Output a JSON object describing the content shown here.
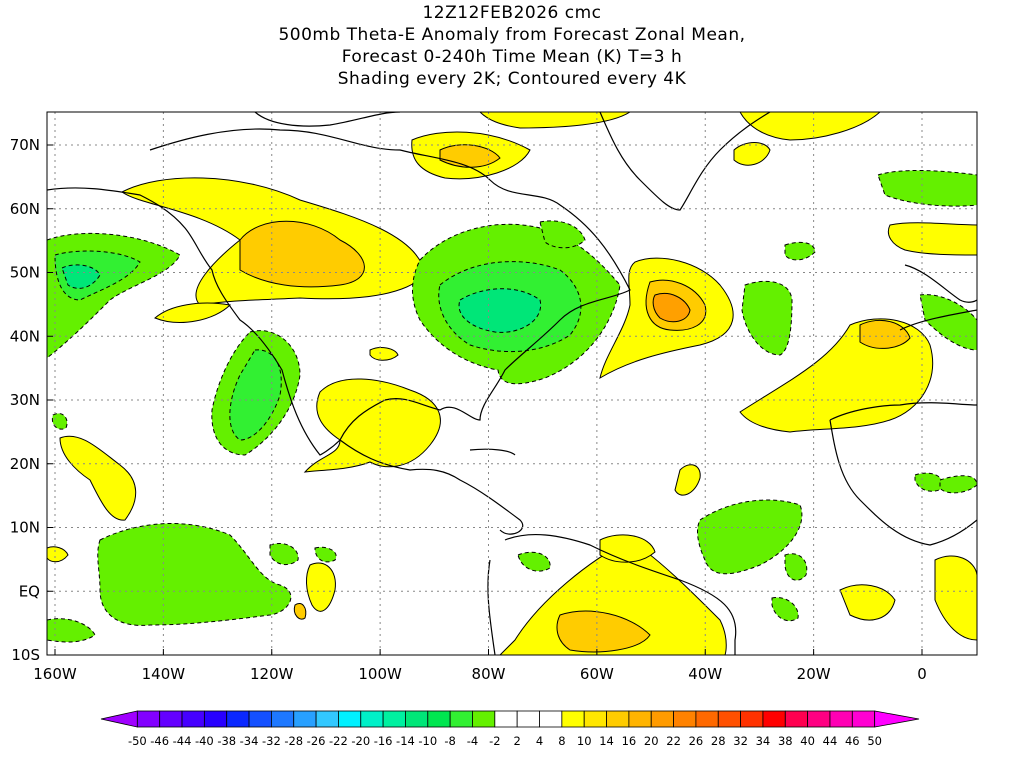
{
  "title": {
    "line1": "12Z12FEB2026 cmc",
    "line2": "500mb Theta-E Anomaly from Forecast Zonal Mean,",
    "line3": "Forecast 0-240h Time Mean (K) T=3 h",
    "line4": "Shading every 2K; Contoured every 4K"
  },
  "axes": {
    "x_labels": [
      "160W",
      "140W",
      "120W",
      "100W",
      "80W",
      "60W",
      "40W",
      "20W",
      "0"
    ],
    "y_labels": [
      "70N",
      "60N",
      "50N",
      "40N",
      "30N",
      "20N",
      "10N",
      "EQ",
      "10S"
    ]
  },
  "colorbar": {
    "labels": [
      "-50",
      "-46",
      "-44",
      "-40",
      "-38",
      "-34",
      "-32",
      "-28",
      "-26",
      "-22",
      "-20",
      "-16",
      "-14",
      "-10",
      "-8",
      "-4",
      "-2",
      "2",
      "4",
      "8",
      "10",
      "14",
      "16",
      "20",
      "22",
      "26",
      "28",
      "32",
      "34",
      "38",
      "40",
      "44",
      "46",
      "50"
    ],
    "colors": [
      "#a000ff",
      "#8200ff",
      "#6400ff",
      "#4600ff",
      "#2800ff",
      "#0a28ff",
      "#1450ff",
      "#1e78ff",
      "#28a0ff",
      "#32c8ff",
      "#00f0ff",
      "#00f0c8",
      "#00f0a0",
      "#00e678",
      "#00e650",
      "#32f032",
      "#64f000",
      "#ffffff",
      "#ffffff",
      "#ffffff",
      "#ffff00",
      "#ffe600",
      "#ffcc00",
      "#ffb400",
      "#ff9b00",
      "#ff8200",
      "#ff6900",
      "#ff5000",
      "#ff3200",
      "#ff0000",
      "#ff0050",
      "#ff0082",
      "#ff00b4",
      "#ff00d2",
      "#ff00ff"
    ]
  },
  "colors": {
    "land_outline": "#000000",
    "grid": "#888888",
    "warm_light": "#ffff00",
    "warm_mid": "#ffcc00",
    "warm_strong": "#ffa000",
    "cold_light": "#64f000",
    "cold_mid": "#32f032",
    "cold_strong": "#00e678"
  }
}
